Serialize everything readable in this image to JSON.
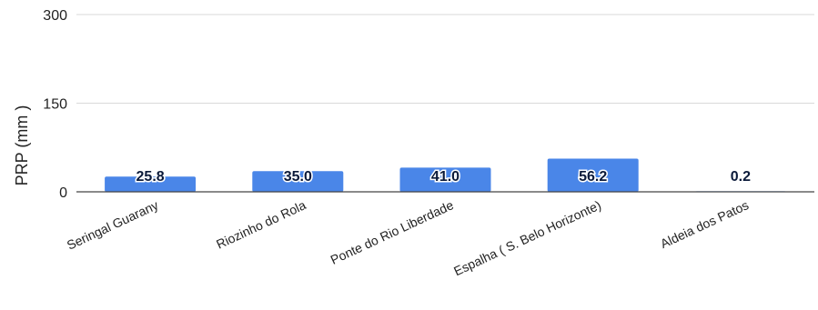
{
  "chart_data": {
    "type": "bar",
    "title": "",
    "xlabel": "",
    "ylabel": "PRP (mm )",
    "ylim": [
      0,
      300
    ],
    "yticks": [
      0,
      150,
      300
    ],
    "grid": true,
    "categories": [
      "Seringal Guarany",
      "Riozinho do Rola",
      "Ponte do Rio Liberdade",
      "Espalha ( S. Belo Horizonte)",
      "Aldeia dos Patos"
    ],
    "values": [
      25.8,
      35.0,
      41.0,
      56.2,
      0.2
    ],
    "data_labels": [
      "25.8",
      "35.0",
      "41.0",
      "56.2",
      "0.2"
    ],
    "bar_color": "#4a86e8",
    "gridline_color": "#d9d9d9",
    "axis_color": "#444444"
  }
}
